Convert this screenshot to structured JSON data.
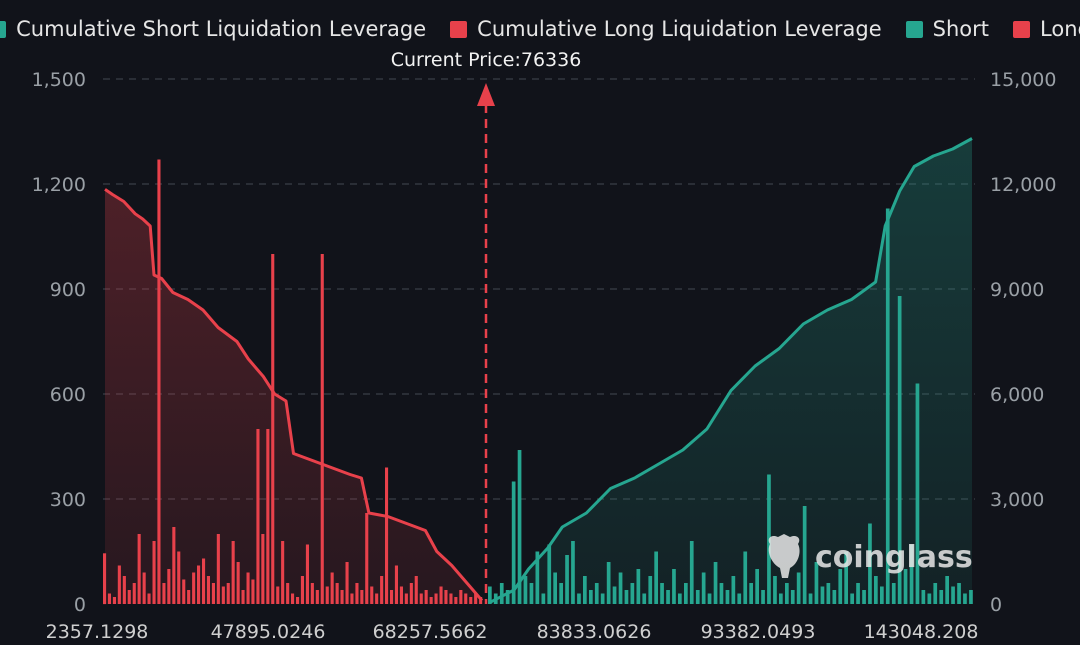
{
  "legend": [
    {
      "label": "Cumulative Short Liquidation Leverage",
      "color": "#26a690"
    },
    {
      "label": "Cumulative Long Liquidation Leverage",
      "color": "#e8414b"
    },
    {
      "label": "Short",
      "color": "#26a690"
    },
    {
      "label": "Long",
      "color": "#e8414b"
    }
  ],
  "current_price_label": "Current Price:76336",
  "watermark": "coinglass",
  "chart_data": {
    "type": "bar",
    "current_price": 76336,
    "x_tick_labels": [
      "2357.1298",
      "47895.0246",
      "68257.5662",
      "83833.0626",
      "93382.0493",
      "143048.208"
    ],
    "y_left": {
      "ticks": [
        "0",
        "300",
        "600",
        "900",
        "1,200",
        "1,500"
      ],
      "range": [
        0,
        1500
      ]
    },
    "y_right": {
      "ticks": [
        "0",
        "3,000",
        "6,000",
        "9,000",
        "12,000",
        "15,000"
      ],
      "range": [
        0,
        15000
      ]
    },
    "grid": true,
    "legend_position": "top",
    "colors": {
      "long": "#e8414b",
      "short": "#26a690"
    },
    "series": [
      {
        "name": "Cumulative Long Liquidation Leverage",
        "axis": "right",
        "points": [
          [
            0,
            11850
          ],
          [
            0.02,
            11700
          ],
          [
            0.05,
            11500
          ],
          [
            0.08,
            11150
          ],
          [
            0.1,
            11000
          ],
          [
            0.12,
            10800
          ],
          [
            0.13,
            9400
          ],
          [
            0.15,
            9300
          ],
          [
            0.18,
            8900
          ],
          [
            0.22,
            8700
          ],
          [
            0.26,
            8400
          ],
          [
            0.3,
            7900
          ],
          [
            0.35,
            7500
          ],
          [
            0.38,
            7000
          ],
          [
            0.42,
            6500
          ],
          [
            0.45,
            6000
          ],
          [
            0.48,
            5800
          ],
          [
            0.5,
            4300
          ],
          [
            0.55,
            4100
          ],
          [
            0.6,
            3900
          ],
          [
            0.65,
            3700
          ],
          [
            0.68,
            3600
          ],
          [
            0.7,
            2600
          ],
          [
            0.75,
            2500
          ],
          [
            0.8,
            2300
          ],
          [
            0.85,
            2100
          ],
          [
            0.88,
            1500
          ],
          [
            0.92,
            1100
          ],
          [
            0.96,
            600
          ],
          [
            1,
            100
          ]
        ]
      },
      {
        "name": "Cumulative Short Liquidation Leverage",
        "axis": "right",
        "points": [
          [
            0,
            50
          ],
          [
            0.05,
            400
          ],
          [
            0.08,
            1000
          ],
          [
            0.12,
            1600
          ],
          [
            0.15,
            2200
          ],
          [
            0.2,
            2600
          ],
          [
            0.25,
            3300
          ],
          [
            0.3,
            3600
          ],
          [
            0.35,
            4000
          ],
          [
            0.4,
            4400
          ],
          [
            0.45,
            5000
          ],
          [
            0.5,
            6100
          ],
          [
            0.55,
            6800
          ],
          [
            0.6,
            7300
          ],
          [
            0.65,
            8000
          ],
          [
            0.7,
            8400
          ],
          [
            0.75,
            8700
          ],
          [
            0.78,
            9000
          ],
          [
            0.8,
            9200
          ],
          [
            0.82,
            10800
          ],
          [
            0.85,
            11800
          ],
          [
            0.88,
            12500
          ],
          [
            0.92,
            12800
          ],
          [
            0.96,
            13000
          ],
          [
            1,
            13300
          ]
        ]
      },
      {
        "name": "Long",
        "axis": "left",
        "values": [
          145,
          30,
          20,
          110,
          80,
          40,
          60,
          200,
          90,
          30,
          180,
          1270,
          60,
          100,
          220,
          150,
          70,
          40,
          90,
          110,
          130,
          80,
          60,
          200,
          50,
          60,
          180,
          120,
          40,
          90,
          70,
          500,
          200,
          500,
          1000,
          50,
          180,
          60,
          30,
          20,
          80,
          170,
          60,
          40,
          1000,
          50,
          90,
          60,
          40,
          120,
          30,
          60,
          40,
          260,
          50,
          30,
          80,
          390,
          40,
          110,
          50,
          30,
          60,
          80,
          30,
          40,
          20,
          30,
          50,
          40,
          30,
          20,
          40,
          30,
          20,
          30,
          20
        ]
      },
      {
        "name": "Short",
        "axis": "left",
        "values": [
          50,
          30,
          60,
          40,
          350,
          440,
          80,
          60,
          150,
          30,
          170,
          90,
          60,
          140,
          180,
          30,
          80,
          40,
          60,
          30,
          120,
          50,
          90,
          40,
          60,
          100,
          30,
          80,
          150,
          60,
          40,
          100,
          30,
          60,
          180,
          40,
          90,
          30,
          120,
          60,
          40,
          80,
          30,
          150,
          60,
          100,
          40,
          370,
          80,
          30,
          60,
          40,
          90,
          280,
          30,
          120,
          50,
          60,
          40,
          100,
          150,
          30,
          60,
          40,
          230,
          80,
          50,
          1130,
          60,
          880,
          100,
          170,
          630,
          40,
          30,
          60,
          40,
          80,
          50,
          60,
          30,
          40
        ]
      }
    ]
  }
}
